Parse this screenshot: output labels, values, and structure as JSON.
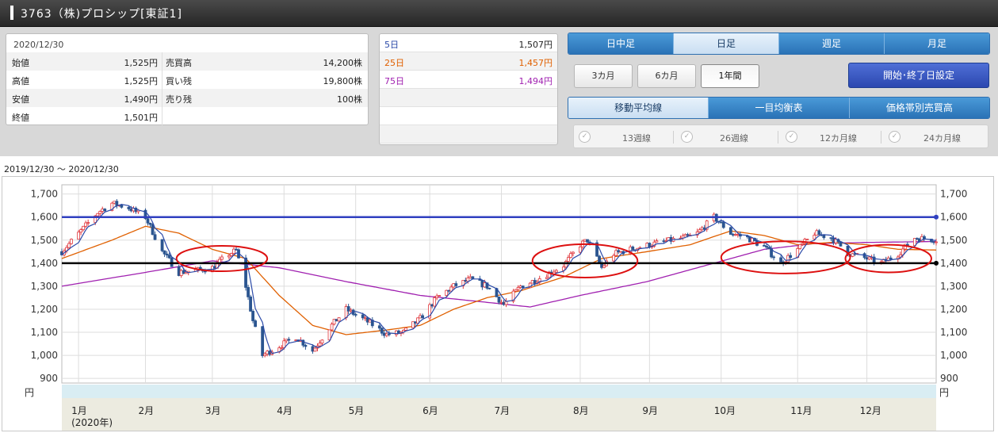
{
  "header": {
    "title": "3763（株)プロシップ[東証1]"
  },
  "quote": {
    "date": "2020/12/30",
    "rows": [
      {
        "l1": "始値",
        "v1": "1,525円",
        "l2": "売買高",
        "v2": "14,200株"
      },
      {
        "l1": "高値",
        "v1": "1,525円",
        "l2": "買い残",
        "v2": "19,800株"
      },
      {
        "l1": "安値",
        "v1": "1,490円",
        "l2": "売り残",
        "v2": "100株"
      },
      {
        "l1": "終値",
        "v1": "1,501円",
        "l2": "",
        "v2": ""
      }
    ]
  },
  "moving_averages": [
    {
      "name": "5日",
      "value": "1,507円",
      "color": "#2b4aa8"
    },
    {
      "name": "25日",
      "value": "1,457円",
      "color": "#e06000"
    },
    {
      "name": "75日",
      "value": "1,494円",
      "color": "#a020b0"
    }
  ],
  "period_tabs": [
    {
      "label": "日中足",
      "active": false
    },
    {
      "label": "日足",
      "active": true
    },
    {
      "label": "週足",
      "active": false
    },
    {
      "label": "月足",
      "active": false
    }
  ],
  "range_buttons": [
    {
      "label": "3カ月",
      "active": false
    },
    {
      "label": "6カ月",
      "active": false
    },
    {
      "label": "1年間",
      "active": true
    }
  ],
  "date_setting_label": "開始･終了日設定",
  "indicator_tabs": [
    {
      "label": "移動平均線",
      "active": true
    },
    {
      "label": "一目均衡表",
      "active": false
    },
    {
      "label": "価格帯別売買高",
      "active": false
    }
  ],
  "line_options": [
    "13週線",
    "26週線",
    "12カ月線",
    "24カ月線"
  ],
  "range_label": "2019/12/30 〜 2020/12/30",
  "colors": {
    "up": "#e0383d",
    "down": "#2b5590",
    "ma5": "#2b4aa8",
    "ma25": "#e06000",
    "ma75": "#a020b0",
    "resistance": "#3040c0",
    "support": "#000000",
    "circle": "#dd1010"
  },
  "chart_data": {
    "type": "candlestick",
    "y_unit": "円",
    "ylim": [
      880,
      1740
    ],
    "y_ticks": [
      900,
      1000,
      1100,
      1200,
      1300,
      1400,
      1500,
      1600,
      1700
    ],
    "y_tick_labels": [
      "900",
      "1,000",
      "1,100",
      "1,200",
      "1,300",
      "1,400",
      "1,500",
      "1,600",
      "1,700"
    ],
    "x_range": [
      "2019-12-30",
      "2020-12-30"
    ],
    "months": [
      {
        "label": "1月",
        "sub": "(2020年)",
        "date": "2020-01-06"
      },
      {
        "label": "2月",
        "sub": "",
        "date": "2020-02-03"
      },
      {
        "label": "3月",
        "sub": "",
        "date": "2020-03-02"
      },
      {
        "label": "4月",
        "sub": "",
        "date": "2020-04-01"
      },
      {
        "label": "5月",
        "sub": "",
        "date": "2020-05-01"
      },
      {
        "label": "6月",
        "sub": "",
        "date": "2020-06-01"
      },
      {
        "label": "7月",
        "sub": "",
        "date": "2020-07-01"
      },
      {
        "label": "8月",
        "sub": "",
        "date": "2020-08-03"
      },
      {
        "label": "9月",
        "sub": "",
        "date": "2020-09-01"
      },
      {
        "label": "10月",
        "sub": "",
        "date": "2020-10-01"
      },
      {
        "label": "11月",
        "sub": "",
        "date": "2020-11-02"
      },
      {
        "label": "12月",
        "sub": "",
        "date": "2020-12-01"
      }
    ],
    "price_path": [
      [
        "2019-12-30",
        1450
      ],
      [
        "2020-01-07",
        1540
      ],
      [
        "2020-01-14",
        1620
      ],
      [
        "2020-01-20",
        1660
      ],
      [
        "2020-01-27",
        1640
      ],
      [
        "2020-02-03",
        1600
      ],
      [
        "2020-02-10",
        1450
      ],
      [
        "2020-02-17",
        1360
      ],
      [
        "2020-02-25",
        1370
      ],
      [
        "2020-03-02",
        1380
      ],
      [
        "2020-03-09",
        1440
      ],
      [
        "2020-03-12",
        1455
      ],
      [
        "2020-03-16",
        1300
      ],
      [
        "2020-03-19",
        1150
      ],
      [
        "2020-03-23",
        1000
      ],
      [
        "2020-03-30",
        1040
      ],
      [
        "2020-04-06",
        1080
      ],
      [
        "2020-04-13",
        1020
      ],
      [
        "2020-04-20",
        1120
      ],
      [
        "2020-04-27",
        1200
      ],
      [
        "2020-05-07",
        1140
      ],
      [
        "2020-05-14",
        1090
      ],
      [
        "2020-05-21",
        1100
      ],
      [
        "2020-05-28",
        1160
      ],
      [
        "2020-06-04",
        1250
      ],
      [
        "2020-06-11",
        1300
      ],
      [
        "2020-06-18",
        1330
      ],
      [
        "2020-06-25",
        1300
      ],
      [
        "2020-07-02",
        1220
      ],
      [
        "2020-07-09",
        1300
      ],
      [
        "2020-07-16",
        1330
      ],
      [
        "2020-07-27",
        1390
      ],
      [
        "2020-08-03",
        1480
      ],
      [
        "2020-08-06",
        1500
      ],
      [
        "2020-08-12",
        1380
      ],
      [
        "2020-08-17",
        1440
      ],
      [
        "2020-08-24",
        1460
      ],
      [
        "2020-09-01",
        1480
      ],
      [
        "2020-09-10",
        1500
      ],
      [
        "2020-09-20",
        1520
      ],
      [
        "2020-09-28",
        1600
      ],
      [
        "2020-10-05",
        1530
      ],
      [
        "2020-10-12",
        1510
      ],
      [
        "2020-10-19",
        1470
      ],
      [
        "2020-10-26",
        1400
      ],
      [
        "2020-11-02",
        1460
      ],
      [
        "2020-11-09",
        1530
      ],
      [
        "2020-11-16",
        1510
      ],
      [
        "2020-11-24",
        1440
      ],
      [
        "2020-12-01",
        1420
      ],
      [
        "2020-12-07",
        1400
      ],
      [
        "2020-12-14",
        1440
      ],
      [
        "2020-12-21",
        1510
      ],
      [
        "2020-12-30",
        1501
      ]
    ],
    "ma25_path": [
      [
        "2019-12-30",
        1420
      ],
      [
        "2020-01-20",
        1500
      ],
      [
        "2020-02-03",
        1560
      ],
      [
        "2020-02-17",
        1530
      ],
      [
        "2020-03-02",
        1460
      ],
      [
        "2020-03-16",
        1420
      ],
      [
        "2020-03-30",
        1260
      ],
      [
        "2020-04-13",
        1130
      ],
      [
        "2020-04-27",
        1090
      ],
      [
        "2020-05-14",
        1110
      ],
      [
        "2020-05-28",
        1130
      ],
      [
        "2020-06-11",
        1200
      ],
      [
        "2020-06-25",
        1250
      ],
      [
        "2020-07-09",
        1280
      ],
      [
        "2020-07-27",
        1340
      ],
      [
        "2020-08-12",
        1420
      ],
      [
        "2020-08-31",
        1450
      ],
      [
        "2020-09-18",
        1480
      ],
      [
        "2020-10-05",
        1540
      ],
      [
        "2020-10-19",
        1520
      ],
      [
        "2020-11-02",
        1480
      ],
      [
        "2020-11-16",
        1490
      ],
      [
        "2020-12-01",
        1480
      ],
      [
        "2020-12-14",
        1460
      ],
      [
        "2020-12-30",
        1457
      ]
    ],
    "ma75_path": [
      [
        "2019-12-30",
        1300
      ],
      [
        "2020-02-03",
        1360
      ],
      [
        "2020-03-02",
        1410
      ],
      [
        "2020-03-30",
        1380
      ],
      [
        "2020-04-27",
        1320
      ],
      [
        "2020-05-28",
        1260
      ],
      [
        "2020-06-25",
        1230
      ],
      [
        "2020-07-13",
        1210
      ],
      [
        "2020-08-03",
        1260
      ],
      [
        "2020-08-31",
        1320
      ],
      [
        "2020-09-28",
        1400
      ],
      [
        "2020-10-19",
        1460
      ],
      [
        "2020-11-09",
        1485
      ],
      [
        "2020-12-01",
        1490
      ],
      [
        "2020-12-30",
        1494
      ]
    ],
    "horizontal_lines": [
      {
        "name": "resistance",
        "value": 1600
      },
      {
        "name": "support",
        "value": 1400
      }
    ],
    "circles": [
      {
        "date": "2020-03-06",
        "price": 1420,
        "rx_days": 19,
        "ry_price": 110
      },
      {
        "date": "2020-08-05",
        "price": 1410,
        "rx_days": 22,
        "ry_price": 145
      },
      {
        "date": "2020-10-28",
        "price": 1425,
        "rx_days": 27,
        "ry_price": 140
      },
      {
        "date": "2020-12-10",
        "price": 1420,
        "rx_days": 18,
        "ry_price": 120
      }
    ]
  }
}
